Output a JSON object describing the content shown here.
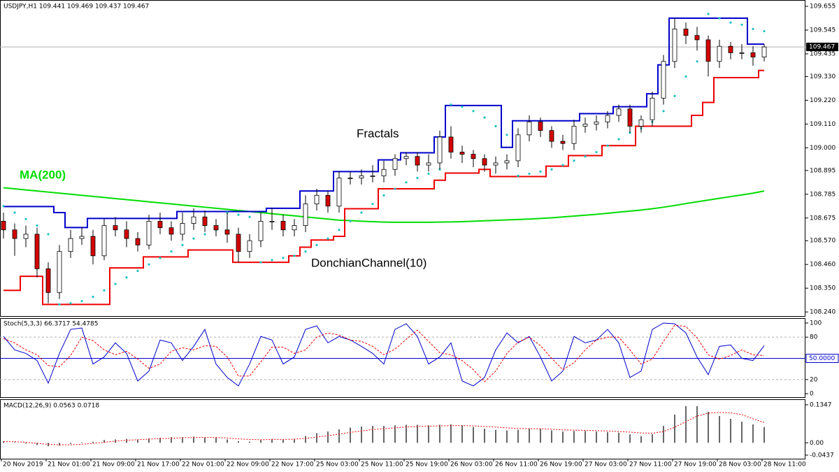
{
  "chart_data": [
    {
      "type": "candlestick",
      "title": "USDJPY,H1  109.441 109.469 109.437 109.467",
      "open": [
        108.66,
        108.62,
        108.58,
        108.6,
        108.44,
        108.33,
        108.52,
        108.58,
        108.59,
        108.5,
        108.64,
        108.62,
        108.58,
        108.55,
        108.66,
        108.63,
        108.6,
        108.65,
        108.68,
        108.64,
        108.62,
        108.6,
        108.52,
        108.57,
        108.66,
        108.66,
        108.62,
        108.64,
        108.74,
        108.78,
        108.73,
        108.86,
        108.86,
        108.87,
        108.87,
        108.9,
        108.95,
        108.96,
        108.92,
        108.93,
        109.05,
        108.98,
        108.97,
        108.95,
        108.92,
        108.93,
        108.94,
        109.06,
        109.12,
        109.08,
        109.03,
        109.02,
        109.1,
        109.11,
        109.12,
        109.15,
        109.18,
        109.1,
        109.13,
        109.23,
        109.4,
        109.55,
        109.52,
        109.5,
        109.4,
        109.47,
        109.44,
        109.44,
        109.42
      ],
      "high": [
        108.7,
        108.65,
        108.64,
        108.63,
        108.47,
        108.55,
        108.62,
        108.63,
        108.62,
        108.67,
        108.68,
        108.66,
        108.61,
        108.69,
        108.7,
        108.66,
        108.7,
        108.72,
        108.71,
        108.67,
        108.7,
        108.63,
        108.6,
        108.7,
        108.72,
        108.69,
        108.67,
        108.78,
        108.81,
        108.8,
        108.89,
        108.89,
        108.9,
        108.92,
        108.94,
        108.97,
        108.98,
        108.98,
        108.97,
        109.08,
        109.1,
        109.01,
        108.99,
        108.97,
        108.96,
        108.97,
        109.09,
        109.15,
        109.14,
        109.1,
        109.06,
        109.13,
        109.14,
        109.15,
        109.17,
        109.2,
        109.2,
        109.15,
        109.26,
        109.43,
        109.6,
        109.58,
        109.56,
        109.52,
        109.5,
        109.49,
        109.48,
        109.47,
        109.48
      ],
      "low": [
        108.58,
        108.5,
        108.54,
        108.4,
        108.28,
        108.3,
        108.49,
        108.55,
        108.46,
        108.48,
        108.59,
        108.54,
        108.52,
        108.53,
        108.6,
        108.57,
        108.57,
        108.62,
        108.61,
        108.59,
        108.56,
        108.47,
        108.49,
        108.54,
        108.62,
        108.59,
        108.59,
        108.61,
        108.71,
        108.7,
        108.7,
        108.83,
        108.83,
        108.84,
        108.84,
        108.87,
        108.92,
        108.89,
        108.89,
        108.9,
        108.95,
        108.93,
        108.91,
        108.89,
        108.88,
        108.9,
        108.91,
        109.03,
        109.05,
        109.0,
        108.99,
        108.99,
        109.07,
        109.08,
        109.09,
        109.12,
        109.07,
        109.07,
        109.1,
        109.2,
        109.37,
        109.48,
        109.45,
        109.33,
        109.37,
        109.41,
        109.41,
        109.38,
        109.4
      ],
      "close": [
        108.62,
        108.58,
        108.6,
        108.44,
        108.33,
        108.52,
        108.58,
        108.59,
        108.5,
        108.64,
        108.62,
        108.58,
        108.55,
        108.66,
        108.63,
        108.6,
        108.65,
        108.68,
        108.64,
        108.62,
        108.6,
        108.52,
        108.57,
        108.66,
        108.66,
        108.62,
        108.64,
        108.74,
        108.78,
        108.73,
        108.86,
        108.86,
        108.87,
        108.87,
        108.9,
        108.95,
        108.96,
        108.92,
        108.93,
        109.05,
        108.98,
        108.97,
        108.95,
        108.92,
        108.93,
        108.94,
        109.06,
        109.12,
        109.08,
        109.03,
        109.02,
        109.1,
        109.11,
        109.12,
        109.15,
        109.18,
        109.1,
        109.13,
        109.23,
        109.4,
        109.55,
        109.52,
        109.5,
        109.4,
        109.47,
        109.44,
        109.44,
        109.42,
        109.467
      ],
      "up_color": "#ffffff",
      "down_color": "#d40000",
      "series": [
        {
          "color": "#00dd00",
          "style": "solid",
          "values": [
            108.815,
            108.81,
            108.805,
            108.8,
            108.795,
            108.79,
            108.785,
            108.78,
            108.775,
            108.77,
            108.765,
            108.76,
            108.755,
            108.75,
            108.745,
            108.74,
            108.735,
            108.73,
            108.725,
            108.72,
            108.715,
            108.71,
            108.705,
            108.7,
            108.695,
            108.69,
            108.685,
            108.68,
            108.675,
            108.67,
            108.665,
            108.663,
            108.66,
            108.658,
            108.656,
            108.655,
            108.655,
            108.655,
            108.655,
            108.656,
            108.657,
            108.658,
            108.66,
            108.662,
            108.664,
            108.666,
            108.668,
            108.67,
            108.673,
            108.676,
            108.68,
            108.684,
            108.688,
            108.692,
            108.697,
            108.702,
            108.707,
            108.712,
            108.718,
            108.725,
            108.733,
            108.742,
            108.75,
            108.758,
            108.766,
            108.774,
            108.782,
            108.79,
            108.8
          ]
        },
        {
          "color": "#0000cc",
          "style": "step",
          "values": [
            108.728,
            108.728,
            108.728,
            108.728,
            108.728,
            108.7,
            108.631,
            108.631,
            108.673,
            108.673,
            108.673,
            108.673,
            108.673,
            108.673,
            108.673,
            108.673,
            108.705,
            108.705,
            108.705,
            108.705,
            108.705,
            108.705,
            108.705,
            108.705,
            108.72,
            108.72,
            108.72,
            108.8,
            108.8,
            108.8,
            108.89,
            108.89,
            108.89,
            108.89,
            108.944,
            108.944,
            108.977,
            108.977,
            108.977,
            109.05,
            109.196,
            109.196,
            109.196,
            109.196,
            109.196,
            109.002,
            109.125,
            109.125,
            109.125,
            109.125,
            109.125,
            109.125,
            109.158,
            109.158,
            109.158,
            109.19,
            109.19,
            109.19,
            109.25,
            109.384,
            109.6,
            109.6,
            109.6,
            109.6,
            109.6,
            109.6,
            109.6,
            109.48,
            109.48
          ]
        },
        {
          "color": "#ee0000",
          "style": "step",
          "values": [
            108.34,
            108.34,
            108.405,
            108.405,
            108.275,
            108.275,
            108.275,
            108.275,
            108.275,
            108.275,
            108.444,
            108.444,
            108.444,
            108.495,
            108.495,
            108.495,
            108.495,
            108.527,
            108.527,
            108.527,
            108.527,
            108.47,
            108.47,
            108.47,
            108.47,
            108.47,
            108.5,
            108.54,
            108.573,
            108.573,
            108.59,
            108.718,
            108.718,
            108.718,
            108.81,
            108.81,
            108.81,
            108.81,
            108.81,
            108.85,
            108.883,
            108.883,
            108.883,
            108.9,
            108.867,
            108.867,
            108.867,
            108.867,
            108.867,
            108.915,
            108.915,
            108.964,
            108.964,
            108.964,
            109.01,
            109.01,
            109.01,
            109.1,
            109.1,
            109.1,
            109.1,
            109.1,
            109.15,
            109.21,
            109.325,
            109.325,
            109.325,
            109.325,
            109.358
          ]
        },
        {
          "color": "#20c0c0",
          "style": "dots",
          "values": [
            108.73,
            108.7,
            108.67,
            108.64,
            108.6,
            108.275,
            108.28,
            108.29,
            108.31,
            108.34,
            108.37,
            108.4,
            108.43,
            108.46,
            108.49,
            108.52,
            108.55,
            108.58,
            108.6,
            108.62,
            108.7,
            108.69,
            108.68,
            108.47,
            108.48,
            108.49,
            108.5,
            108.52,
            108.55,
            108.58,
            108.62,
            108.66,
            108.7,
            108.74,
            108.78,
            108.81,
            108.84,
            108.86,
            108.88,
            108.9,
            109.2,
            109.19,
            109.17,
            109.14,
            109.1,
            109.06,
            108.87,
            108.88,
            108.89,
            108.9,
            108.92,
            108.94,
            108.96,
            108.98,
            109.01,
            109.04,
            109.07,
            109.09,
            109.12,
            109.17,
            109.24,
            109.33,
            109.4,
            109.62,
            109.6,
            109.58,
            109.57,
            109.55,
            109.54
          ]
        }
      ],
      "annotations": [
        {
          "text": "MA(200)",
          "color": "#00dd00"
        },
        {
          "text": "Fractals",
          "color": "#000000"
        },
        {
          "text": "DonchianChannel(10)",
          "color": "#000000"
        }
      ],
      "ylim": [
        108.221,
        109.681
      ],
      "yticks": [
        109.655,
        109.545,
        109.435,
        {
          "value": 109.33,
          "label": "109.330"
        },
        {
          "value": 109.22,
          "label": "109.220"
        },
        {
          "value": 109.11,
          "label": "109.110"
        },
        {
          "value": 109,
          "label": "109.000"
        },
        108.895,
        108.785,
        108.675,
        {
          "value": 108.57,
          "label": "108.570"
        },
        {
          "value": 108.46,
          "label": "108.460"
        },
        {
          "value": 108.35,
          "label": "108.350"
        },
        {
          "value": 108.24,
          "label": "108.240"
        }
      ],
      "last_price": {
        "value": 109.467,
        "label": "109.467"
      },
      "x_labels": [
        "20 Nov 2019",
        "21 Nov 01:00",
        "21 Nov 09:00",
        "21 Nov 17:00",
        "22 Nov 01:00",
        "22 Nov 09:00",
        "22 Nov 17:00",
        "25 Nov 03:00",
        "25 Nov 11:00",
        "25 Nov 19:00",
        "26 Nov 03:00",
        "26 Nov 11:00",
        "26 Nov 19:00",
        "27 Nov 03:00",
        "27 Nov 11:00",
        "27 Nov 19:00",
        "28 Nov 03:00",
        "28 Nov 11:00"
      ]
    },
    {
      "type": "line",
      "title": "Stoch(5,3,3) 66.3717 54.4785",
      "series": [
        {
          "color": "#0000cc",
          "style": "solid",
          "values": [
            81,
            62,
            57,
            47,
            15,
            57,
            91,
            93,
            42,
            52,
            72,
            57,
            18,
            32,
            76,
            72,
            47,
            67,
            91,
            42,
            23,
            11,
            42,
            81,
            76,
            42,
            52,
            91,
            96,
            72,
            81,
            76,
            67,
            57,
            42,
            91,
            99,
            81,
            42,
            52,
            72,
            18,
            11,
            23,
            62,
            86,
            72,
            81,
            52,
            18,
            32,
            81,
            72,
            76,
            91,
            72,
            23,
            32,
            91,
            100,
            99,
            86,
            52,
            27,
            67,
            69,
            50,
            47,
            68
          ]
        },
        {
          "color": "#ee0000",
          "style": "dashed",
          "values": [
            78,
            72,
            62,
            55,
            40,
            38,
            54,
            80,
            75,
            62,
            55,
            60,
            49,
            36,
            42,
            60,
            65,
            62,
            68,
            67,
            52,
            25,
            25,
            45,
            66,
            66,
            57,
            62,
            80,
            86,
            83,
            76,
            74,
            67,
            55,
            63,
            77,
            90,
            74,
            58,
            55,
            47,
            34,
            17,
            32,
            57,
            73,
            80,
            68,
            50,
            34,
            44,
            62,
            76,
            80,
            80,
            62,
            42,
            49,
            74,
            97,
            95,
            79,
            55,
            49,
            54,
            62,
            55,
            54
          ]
        }
      ],
      "ylim": [
        -4.9,
        105.9
      ],
      "yticks": [
        0,
        20,
        80,
        100
      ],
      "level": {
        "value": 50,
        "label": "50.0000",
        "color": "#0000cc"
      }
    },
    {
      "type": "macd",
      "title": "MACD(12,26,9) 0.0563 0.0718",
      "values": [
        0.005,
        0.002,
        -0.003,
        -0.008,
        -0.012,
        -0.01,
        -0.004,
        0.002,
        0.004,
        0.01,
        0.012,
        0.014,
        0.012,
        0.016,
        0.018,
        0.02,
        0.02,
        0.022,
        0.02,
        0.018,
        0.012,
        0.006,
        0.004,
        0.01,
        0.014,
        0.012,
        0.014,
        0.024,
        0.034,
        0.04,
        0.048,
        0.054,
        0.058,
        0.06,
        0.06,
        0.062,
        0.064,
        0.064,
        0.062,
        0.064,
        0.066,
        0.062,
        0.056,
        0.05,
        0.046,
        0.044,
        0.046,
        0.05,
        0.05,
        0.044,
        0.04,
        0.042,
        0.042,
        0.04,
        0.038,
        0.036,
        0.03,
        0.024,
        0.03,
        0.06,
        0.1,
        0.13,
        0.13,
        0.11,
        0.095,
        0.085,
        0.075,
        0.065,
        0.056
      ],
      "color": "#000000",
      "signal": {
        "color": "#ee0000",
        "values": [
          0.004,
          0.004,
          0.002,
          -0.002,
          -0.005,
          -0.007,
          -0.007,
          -0.005,
          -0.002,
          0.002,
          0.006,
          0.009,
          0.011,
          0.013,
          0.015,
          0.016,
          0.018,
          0.019,
          0.019,
          0.019,
          0.017,
          0.014,
          0.012,
          0.011,
          0.012,
          0.012,
          0.013,
          0.016,
          0.02,
          0.025,
          0.031,
          0.037,
          0.042,
          0.047,
          0.05,
          0.053,
          0.056,
          0.058,
          0.059,
          0.06,
          0.061,
          0.061,
          0.06,
          0.058,
          0.056,
          0.053,
          0.051,
          0.05,
          0.05,
          0.048,
          0.046,
          0.045,
          0.044,
          0.043,
          0.042,
          0.04,
          0.038,
          0.035,
          0.034,
          0.04,
          0.055,
          0.075,
          0.095,
          0.105,
          0.108,
          0.106,
          0.1,
          0.085,
          0.072
        ]
      },
      "ylim": [
        -0.0563,
        0.1518
      ],
      "yticks": [
        0.1347,
        {
          "value": 0,
          "label": "0.00"
        },
        -0.0437
      ]
    }
  ]
}
